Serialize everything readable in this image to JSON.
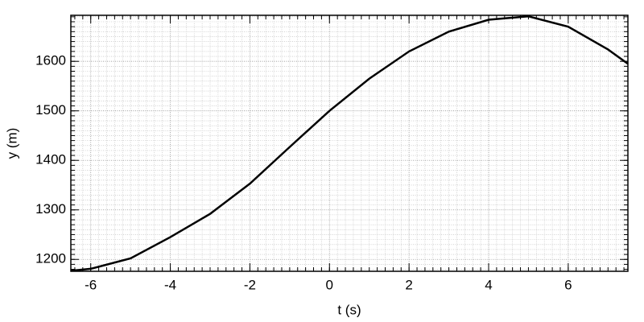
{
  "chart_data": {
    "type": "line",
    "x_label": "t (s)",
    "y_label": "y (m)",
    "x": [
      -6.5,
      -6,
      -5,
      -4,
      -3,
      -2,
      -1,
      0,
      1,
      2,
      3,
      4,
      5,
      6,
      7,
      7.5
    ],
    "series": [
      {
        "color": "#000000",
        "values": [
          1177,
          1181,
          1202,
          1245,
          1292,
          1353,
          1427,
          1500,
          1565,
          1620,
          1660,
          1684,
          1691,
          1670,
          1624,
          1595
        ]
      }
    ],
    "xlim": [
      -6.5,
      7.5
    ],
    "xticks": [
      -6,
      -4,
      -2,
      0,
      2,
      4,
      6
    ],
    "ylim": [
      1176,
      1693
    ],
    "yticks": [
      1200,
      1300,
      1400,
      1500,
      1600
    ],
    "grid": true
  }
}
